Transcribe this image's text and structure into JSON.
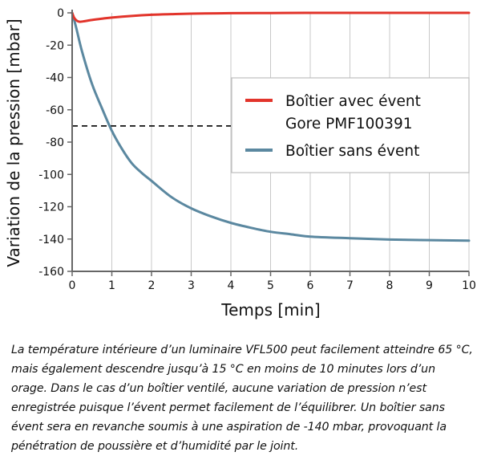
{
  "chart_data": {
    "type": "line",
    "xlabel": "Temps [min]",
    "ylabel": "Variation de la pression [mbar]",
    "xlim": [
      0,
      10
    ],
    "ylim": [
      -160,
      0
    ],
    "x_ticks": [
      "0",
      "1",
      "2",
      "3",
      "4",
      "5",
      "6",
      "7",
      "8",
      "9",
      "10"
    ],
    "y_ticks": [
      "0",
      "-20",
      "-40",
      "-60",
      "-80",
      "-100",
      "-120",
      "-140",
      "-160"
    ],
    "grid": "vertical",
    "legend_position": "right",
    "reference_line": {
      "y": -70,
      "x_range": [
        0,
        4
      ],
      "style": "dashed"
    },
    "series": [
      {
        "name": "Boîtier avec évent Gore PMF100391",
        "legend_lines": [
          "Boîtier avec évent",
          "Gore PMF100391"
        ],
        "color": "#e2342b",
        "x": [
          0,
          0.05,
          0.1,
          0.15,
          0.2,
          0.3,
          0.5,
          0.75,
          1,
          1.5,
          2,
          2.5,
          3,
          4,
          5,
          6,
          7,
          8,
          9,
          10
        ],
        "y": [
          0,
          -3,
          -4.5,
          -5.3,
          -5.5,
          -5.2,
          -4.4,
          -3.6,
          -2.9,
          -1.9,
          -1.2,
          -0.8,
          -0.5,
          -0.2,
          -0.1,
          0,
          0,
          0,
          0,
          0
        ]
      },
      {
        "name": "Boîtier sans évent",
        "legend_lines": [
          "Boîtier sans évent"
        ],
        "color": "#5b88a0",
        "x": [
          0,
          0.1,
          0.25,
          0.5,
          0.75,
          1,
          1.25,
          1.5,
          1.75,
          2,
          2.5,
          3,
          3.5,
          4,
          4.5,
          5,
          5.5,
          6,
          7,
          8,
          9,
          10
        ],
        "y": [
          0,
          -9,
          -24,
          -44,
          -59,
          -73,
          -84,
          -93,
          -99,
          -104,
          -114,
          -121,
          -126,
          -130,
          -133,
          -135.5,
          -137,
          -138.5,
          -139.5,
          -140.3,
          -140.7,
          -141
        ]
      }
    ]
  },
  "caption": "La température intérieure d’un luminaire VFL500 peut facilement atteindre 65 °C, mais également descendre jusqu’à 15 °C en moins de 10 minutes lors d’un orage. Dans le cas d’un boîtier ventilé, aucune variation de pression n’est enregistrée puisque l’évent permet facilement de l’équilibrer. Un boîtier sans évent sera en revanche soumis à une aspiration de -140 mbar, provoquant la pénétration de poussière et d’humidité par le joint."
}
